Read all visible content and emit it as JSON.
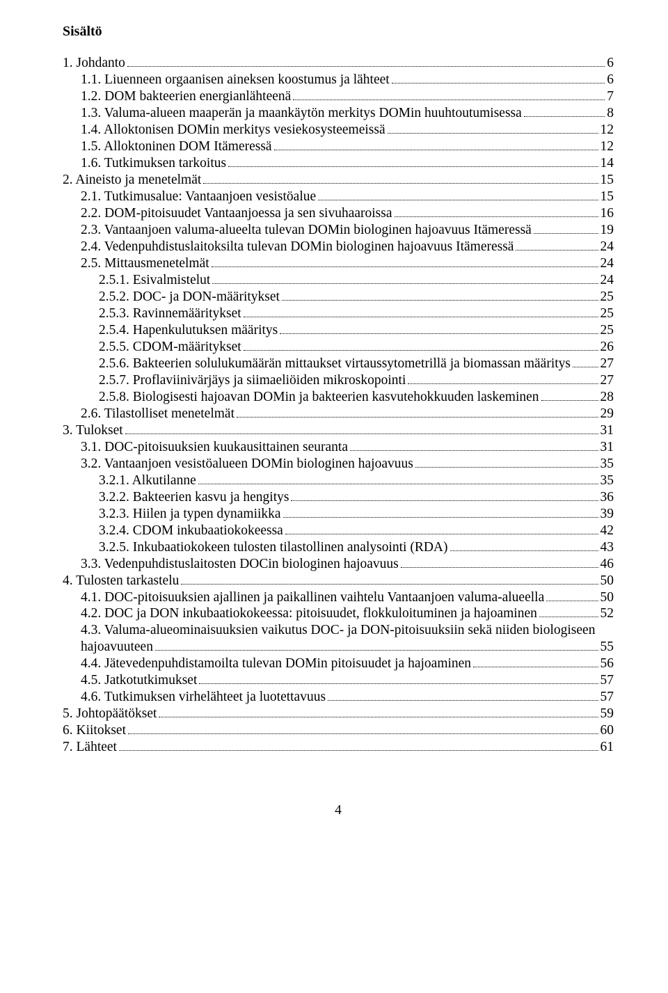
{
  "heading": "Sisältö",
  "page_number": "4",
  "colors": {
    "text": "#000000",
    "background": "#ffffff"
  },
  "font": {
    "family": "Times New Roman",
    "body_size_pt": 15,
    "heading_size_pt": 15
  },
  "toc": [
    {
      "indent": 0,
      "label": "1. Johdanto",
      "page": "6"
    },
    {
      "indent": 1,
      "label": "1.1. Liuenneen orgaanisen aineksen koostumus ja lähteet",
      "page": "6"
    },
    {
      "indent": 1,
      "label": "1.2. DOM bakteerien energianlähteenä",
      "page": "7"
    },
    {
      "indent": 1,
      "label": "1.3. Valuma-alueen maaperän ja maankäytön merkitys DOMin huuhtoutumisessa",
      "page": "8"
    },
    {
      "indent": 1,
      "label": "1.4. Alloktonisen DOMin merkitys vesiekosysteemeissä",
      "page": "12"
    },
    {
      "indent": 1,
      "label": "1.5. Alloktoninen DOM Itämeressä",
      "page": "12"
    },
    {
      "indent": 1,
      "label": "1.6. Tutkimuksen tarkoitus",
      "page": "14"
    },
    {
      "indent": 0,
      "label": "2. Aineisto ja menetelmät",
      "page": "15"
    },
    {
      "indent": 1,
      "label": "2.1. Tutkimusalue: Vantaanjoen vesistöalue",
      "page": "15"
    },
    {
      "indent": 1,
      "label": "2.2. DOM-pitoisuudet Vantaanjoessa ja sen sivuhaaroissa",
      "page": "16"
    },
    {
      "indent": 1,
      "label": "2.3. Vantaanjoen valuma-alueelta tulevan DOMin biologinen hajoavuus Itämeressä",
      "page": "19"
    },
    {
      "indent": 1,
      "label": "2.4. Vedenpuhdistuslaitoksilta tulevan DOMin biologinen hajoavuus Itämeressä",
      "page": "24"
    },
    {
      "indent": 1,
      "label": "2.5. Mittausmenetelmät",
      "page": "24"
    },
    {
      "indent": 2,
      "label": "2.5.1. Esivalmistelut",
      "page": "24"
    },
    {
      "indent": 2,
      "label": "2.5.2. DOC- ja DON-määritykset",
      "page": "25"
    },
    {
      "indent": 2,
      "label": "2.5.3. Ravinnemääritykset",
      "page": "25"
    },
    {
      "indent": 2,
      "label": "2.5.4. Hapenkulutuksen määritys",
      "page": "25"
    },
    {
      "indent": 2,
      "label": "2.5.5. CDOM-määritykset",
      "page": "26"
    },
    {
      "indent": 2,
      "label": "2.5.6. Bakteerien solulukumäärän mittaukset virtaussytometrillä ja biomassan määritys",
      "page": "27"
    },
    {
      "indent": 2,
      "label": "2.5.7. Proflaviinivärjäys ja siimaeliöiden mikroskopointi",
      "page": "27"
    },
    {
      "indent": 2,
      "label": "2.5.8. Biologisesti hajoavan DOMin ja bakteerien kasvutehokkuuden laskeminen",
      "page": "28"
    },
    {
      "indent": 1,
      "label": "2.6. Tilastolliset menetelmät",
      "page": "29"
    },
    {
      "indent": 0,
      "label": "3. Tulokset",
      "page": "31"
    },
    {
      "indent": 1,
      "label": "3.1. DOC-pitoisuuksien kuukausittainen seuranta",
      "page": "31"
    },
    {
      "indent": 1,
      "label": "3.2. Vantaanjoen vesistöalueen DOMin biologinen hajoavuus",
      "page": "35"
    },
    {
      "indent": 2,
      "label": "3.2.1. Alkutilanne",
      "page": "35"
    },
    {
      "indent": 2,
      "label": "3.2.2. Bakteerien kasvu ja hengitys",
      "page": "36"
    },
    {
      "indent": 2,
      "label": "3.2.3. Hiilen ja typen dynamiikka",
      "page": "39"
    },
    {
      "indent": 2,
      "label": "3.2.4. CDOM inkubaatiokokeessa",
      "page": "42"
    },
    {
      "indent": 2,
      "label": "3.2.5. Inkubaatiokokeen tulosten tilastollinen analysointi (RDA)",
      "page": "43"
    },
    {
      "indent": 1,
      "label": "3.3. Vedenpuhdistuslaitosten DOCin biologinen hajoavuus",
      "page": "46"
    },
    {
      "indent": 0,
      "label": "4. Tulosten tarkastelu",
      "page": "50"
    },
    {
      "indent": 1,
      "label": "4.1. DOC-pitoisuuksien ajallinen ja paikallinen vaihtelu Vantaanjoen valuma-alueella",
      "page": "50"
    },
    {
      "indent": 1,
      "label": "4.2. DOC ja DON inkubaatiokokeessa: pitoisuudet, flokkuloituminen ja hajoaminen",
      "page": "52"
    },
    {
      "indent": 1,
      "wrap": true,
      "label_line1": "4.3. Valuma-alueominaisuuksien vaikutus DOC- ja DON-pitoisuuksiin sekä niiden biologiseen",
      "label_line2": "hajoavuuteen",
      "page": "55"
    },
    {
      "indent": 1,
      "label": "4.4. Jätevedenpuhdistamoilta tulevan DOMin pitoisuudet ja hajoaminen",
      "page": "56"
    },
    {
      "indent": 1,
      "label": "4.5. Jatkotutkimukset",
      "page": "57"
    },
    {
      "indent": 1,
      "label": "4.6. Tutkimuksen virhelähteet ja luotettavuus",
      "page": "57"
    },
    {
      "indent": 0,
      "label": "5. Johtopäätökset",
      "page": "59"
    },
    {
      "indent": 0,
      "label": "6. Kiitokset",
      "page": "60"
    },
    {
      "indent": 0,
      "label": "7. Lähteet",
      "page": "61"
    }
  ]
}
